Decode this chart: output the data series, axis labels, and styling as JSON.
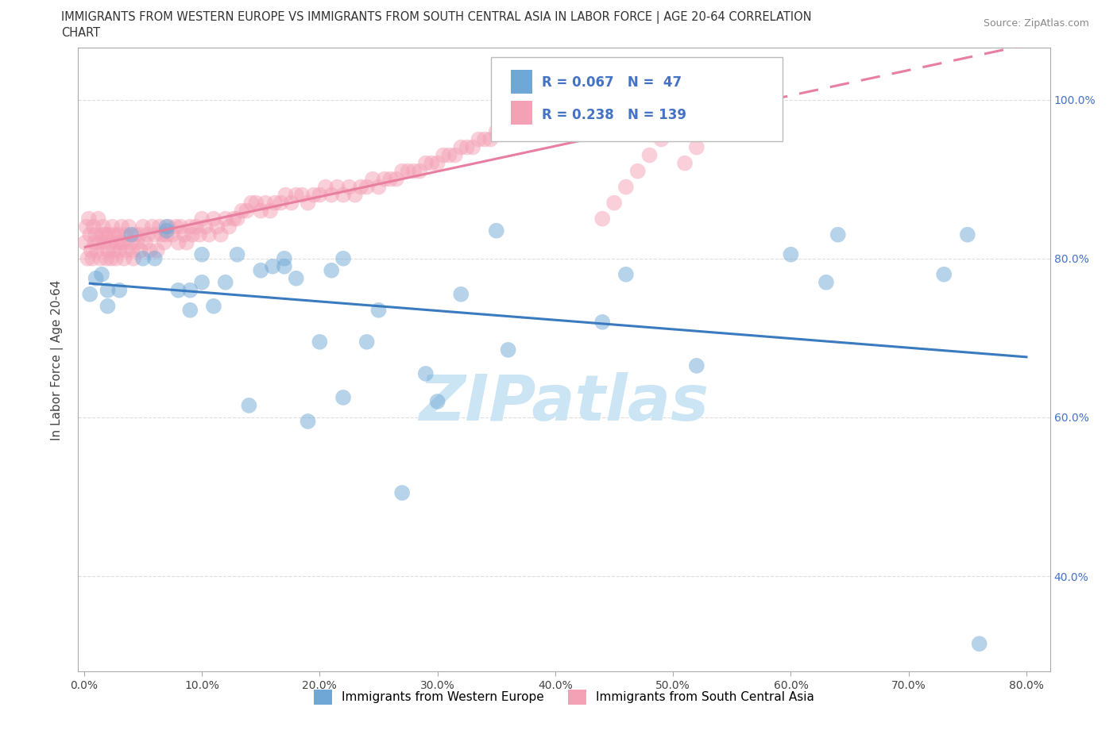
{
  "title_line1": "IMMIGRANTS FROM WESTERN EUROPE VS IMMIGRANTS FROM SOUTH CENTRAL ASIA IN LABOR FORCE | AGE 20-64 CORRELATION",
  "title_line2": "CHART",
  "source_text": "Source: ZipAtlas.com",
  "ylabel": "In Labor Force | Age 20-64",
  "xtick_labels": [
    "0.0%",
    "10.0%",
    "20.0%",
    "30.0%",
    "40.0%",
    "50.0%",
    "60.0%",
    "70.0%",
    "80.0%"
  ],
  "xtick_vals": [
    0.0,
    0.1,
    0.2,
    0.3,
    0.4,
    0.5,
    0.6,
    0.7,
    0.8
  ],
  "ytick_labels": [
    "40.0%",
    "60.0%",
    "80.0%",
    "100.0%"
  ],
  "ytick_vals": [
    0.4,
    0.6,
    0.8,
    1.0
  ],
  "blue_color": "#6fa8d6",
  "pink_color": "#f4a0b5",
  "blue_line_color": "#3a7abf",
  "pink_line_color": "#e87fa0",
  "watermark_color": "#cce5f5",
  "legend_blue_label": "Immigrants from Western Europe",
  "legend_pink_label": "Immigrants from South Central Asia",
  "R_blue": 0.067,
  "N_blue": 47,
  "R_pink": 0.238,
  "N_pink": 139,
  "blue_x": [
    0.005,
    0.01,
    0.015,
    0.02,
    0.02,
    0.03,
    0.04,
    0.05,
    0.06,
    0.07,
    0.07,
    0.08,
    0.09,
    0.09,
    0.1,
    0.1,
    0.11,
    0.12,
    0.13,
    0.14,
    0.15,
    0.16,
    0.17,
    0.17,
    0.18,
    0.19,
    0.2,
    0.21,
    0.22,
    0.22,
    0.24,
    0.25,
    0.27,
    0.29,
    0.3,
    0.32,
    0.35,
    0.36,
    0.44,
    0.46,
    0.52,
    0.6,
    0.63,
    0.64,
    0.73,
    0.75,
    0.76
  ],
  "blue_y": [
    0.755,
    0.775,
    0.78,
    0.74,
    0.76,
    0.76,
    0.83,
    0.8,
    0.8,
    0.835,
    0.84,
    0.76,
    0.735,
    0.76,
    0.77,
    0.805,
    0.74,
    0.77,
    0.805,
    0.615,
    0.785,
    0.79,
    0.79,
    0.8,
    0.775,
    0.595,
    0.695,
    0.785,
    0.625,
    0.8,
    0.695,
    0.735,
    0.505,
    0.655,
    0.62,
    0.755,
    0.835,
    0.685,
    0.72,
    0.78,
    0.665,
    0.805,
    0.77,
    0.83,
    0.78,
    0.83,
    0.315
  ],
  "pink_x": [
    0.001,
    0.002,
    0.003,
    0.004,
    0.005,
    0.006,
    0.007,
    0.008,
    0.009,
    0.01,
    0.011,
    0.012,
    0.013,
    0.014,
    0.015,
    0.016,
    0.017,
    0.018,
    0.019,
    0.02,
    0.021,
    0.022,
    0.023,
    0.024,
    0.025,
    0.026,
    0.027,
    0.028,
    0.029,
    0.03,
    0.031,
    0.032,
    0.033,
    0.034,
    0.035,
    0.036,
    0.038,
    0.04,
    0.041,
    0.042,
    0.043,
    0.045,
    0.047,
    0.048,
    0.05,
    0.052,
    0.054,
    0.056,
    0.058,
    0.06,
    0.062,
    0.064,
    0.066,
    0.068,
    0.07,
    0.072,
    0.075,
    0.078,
    0.08,
    0.082,
    0.085,
    0.087,
    0.09,
    0.092,
    0.095,
    0.098,
    0.1,
    0.103,
    0.106,
    0.11,
    0.113,
    0.116,
    0.12,
    0.123,
    0.127,
    0.13,
    0.134,
    0.138,
    0.142,
    0.146,
    0.15,
    0.154,
    0.158,
    0.162,
    0.167,
    0.171,
    0.176,
    0.18,
    0.185,
    0.19,
    0.195,
    0.2,
    0.205,
    0.21,
    0.215,
    0.22,
    0.225,
    0.23,
    0.235,
    0.24,
    0.245,
    0.25,
    0.255,
    0.26,
    0.265,
    0.27,
    0.275,
    0.28,
    0.285,
    0.29,
    0.295,
    0.3,
    0.305,
    0.31,
    0.315,
    0.32,
    0.325,
    0.33,
    0.335,
    0.34,
    0.345,
    0.35,
    0.36,
    0.37,
    0.38,
    0.39,
    0.4,
    0.41,
    0.42,
    0.43,
    0.44,
    0.45,
    0.46,
    0.47,
    0.48,
    0.49,
    0.5,
    0.51,
    0.52
  ],
  "pink_y": [
    0.82,
    0.84,
    0.8,
    0.85,
    0.83,
    0.81,
    0.8,
    0.84,
    0.82,
    0.83,
    0.81,
    0.85,
    0.82,
    0.8,
    0.83,
    0.84,
    0.82,
    0.83,
    0.8,
    0.81,
    0.83,
    0.82,
    0.8,
    0.84,
    0.81,
    0.83,
    0.8,
    0.82,
    0.83,
    0.81,
    0.82,
    0.84,
    0.82,
    0.8,
    0.83,
    0.81,
    0.84,
    0.82,
    0.81,
    0.8,
    0.83,
    0.82,
    0.83,
    0.81,
    0.84,
    0.82,
    0.83,
    0.81,
    0.84,
    0.83,
    0.81,
    0.84,
    0.83,
    0.82,
    0.83,
    0.84,
    0.83,
    0.84,
    0.82,
    0.84,
    0.83,
    0.82,
    0.84,
    0.83,
    0.84,
    0.83,
    0.85,
    0.84,
    0.83,
    0.85,
    0.84,
    0.83,
    0.85,
    0.84,
    0.85,
    0.85,
    0.86,
    0.86,
    0.87,
    0.87,
    0.86,
    0.87,
    0.86,
    0.87,
    0.87,
    0.88,
    0.87,
    0.88,
    0.88,
    0.87,
    0.88,
    0.88,
    0.89,
    0.88,
    0.89,
    0.88,
    0.89,
    0.88,
    0.89,
    0.89,
    0.9,
    0.89,
    0.9,
    0.9,
    0.9,
    0.91,
    0.91,
    0.91,
    0.91,
    0.92,
    0.92,
    0.92,
    0.93,
    0.93,
    0.93,
    0.94,
    0.94,
    0.94,
    0.95,
    0.95,
    0.95,
    0.96,
    0.97,
    0.97,
    0.98,
    0.98,
    0.99,
    0.99,
    0.99,
    0.99,
    0.85,
    0.87,
    0.89,
    0.91,
    0.93,
    0.95,
    0.97,
    0.92,
    0.94
  ]
}
